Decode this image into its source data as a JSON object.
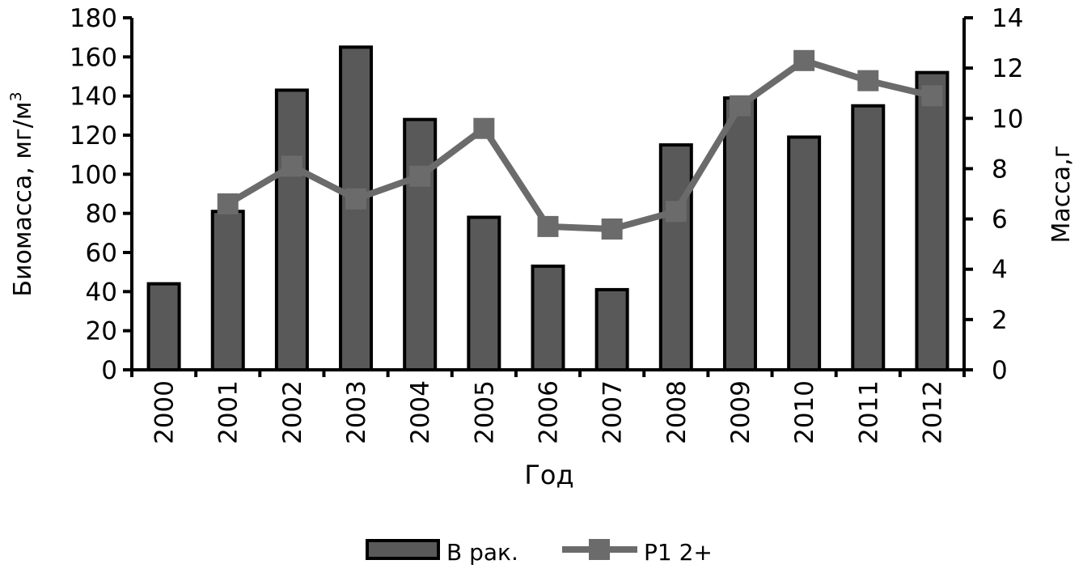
{
  "chart_data": {
    "type": "bar",
    "categories": [
      "2000",
      "2001",
      "2002",
      "2003",
      "2004",
      "2005",
      "2006",
      "2007",
      "2008",
      "2009",
      "2010",
      "2011",
      "2012"
    ],
    "xlabel": "Год",
    "ylabel": "Биомасса, мг/м",
    "ylabel_superscript": "3",
    "y2label": "Масса,г",
    "ylim": [
      0,
      180
    ],
    "yticks": [
      0,
      20,
      40,
      60,
      80,
      100,
      120,
      140,
      160,
      180
    ],
    "y2lim": [
      0,
      14
    ],
    "y2ticks": [
      0,
      2,
      4,
      6,
      8,
      10,
      12,
      14
    ],
    "grid": false,
    "legend_position": "bottom",
    "series": [
      {
        "name": "B рак.",
        "type": "bar",
        "axis": "left",
        "color": "#595959",
        "values": [
          44,
          81,
          143,
          165,
          128,
          78,
          53,
          41,
          115,
          139,
          119,
          135,
          152
        ]
      },
      {
        "name": "P1 2+",
        "type": "line",
        "axis": "right",
        "color": "#6b6b6b",
        "values": [
          null,
          6.6,
          8.1,
          6.8,
          7.7,
          9.6,
          5.7,
          5.6,
          6.3,
          10.5,
          12.3,
          11.5,
          10.9
        ]
      }
    ]
  }
}
